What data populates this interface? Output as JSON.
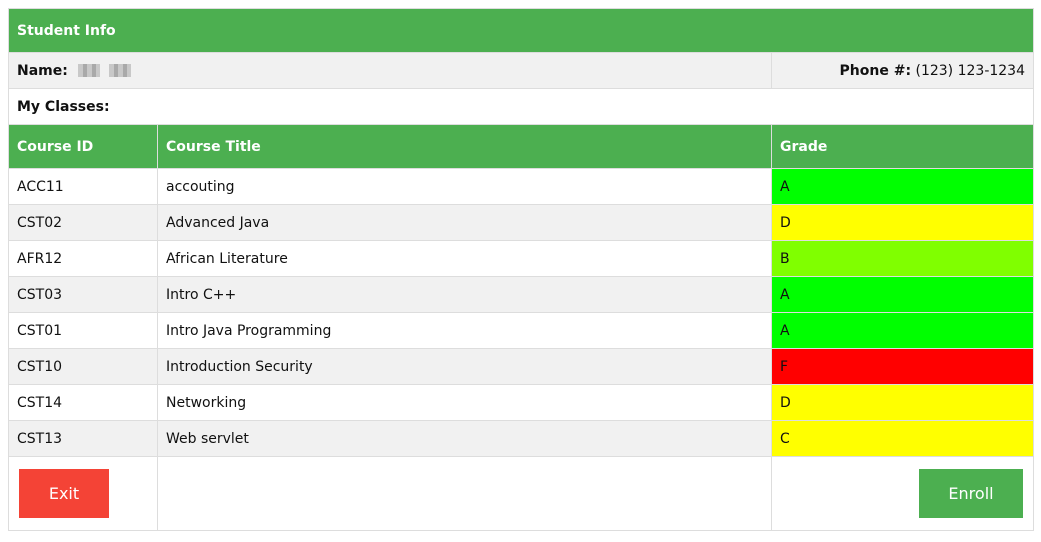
{
  "header": {
    "title": "Student Info"
  },
  "student": {
    "name_label": "Name:",
    "phone_label": "Phone #:",
    "phone_value": "(123) 123-1234"
  },
  "classes_label": "My Classes:",
  "columns": {
    "course_id": "Course ID",
    "course_title": "Course Title",
    "grade": "Grade"
  },
  "courses": [
    {
      "id": "ACC11",
      "title": "accouting",
      "grade": "A",
      "grade_color": "#00ff00"
    },
    {
      "id": "CST02",
      "title": "Advanced Java",
      "grade": "D",
      "grade_color": "#ffff00"
    },
    {
      "id": "AFR12",
      "title": "African Literature",
      "grade": "B",
      "grade_color": "#80ff00"
    },
    {
      "id": "CST03",
      "title": "Intro C++",
      "grade": "A",
      "grade_color": "#00ff00"
    },
    {
      "id": "CST01",
      "title": "Intro Java Programming",
      "grade": "A",
      "grade_color": "#00ff00"
    },
    {
      "id": "CST10",
      "title": "Introduction Security",
      "grade": "F",
      "grade_color": "#ff0000"
    },
    {
      "id": "CST14",
      "title": "Networking",
      "grade": "D",
      "grade_color": "#ffff00"
    },
    {
      "id": "CST13",
      "title": "Web servlet",
      "grade": "C",
      "grade_color": "#ffff00"
    }
  ],
  "buttons": {
    "exit": "Exit",
    "enroll": "Enroll"
  },
  "colors": {
    "accent": "#4CAF50",
    "danger": "#f44336"
  }
}
